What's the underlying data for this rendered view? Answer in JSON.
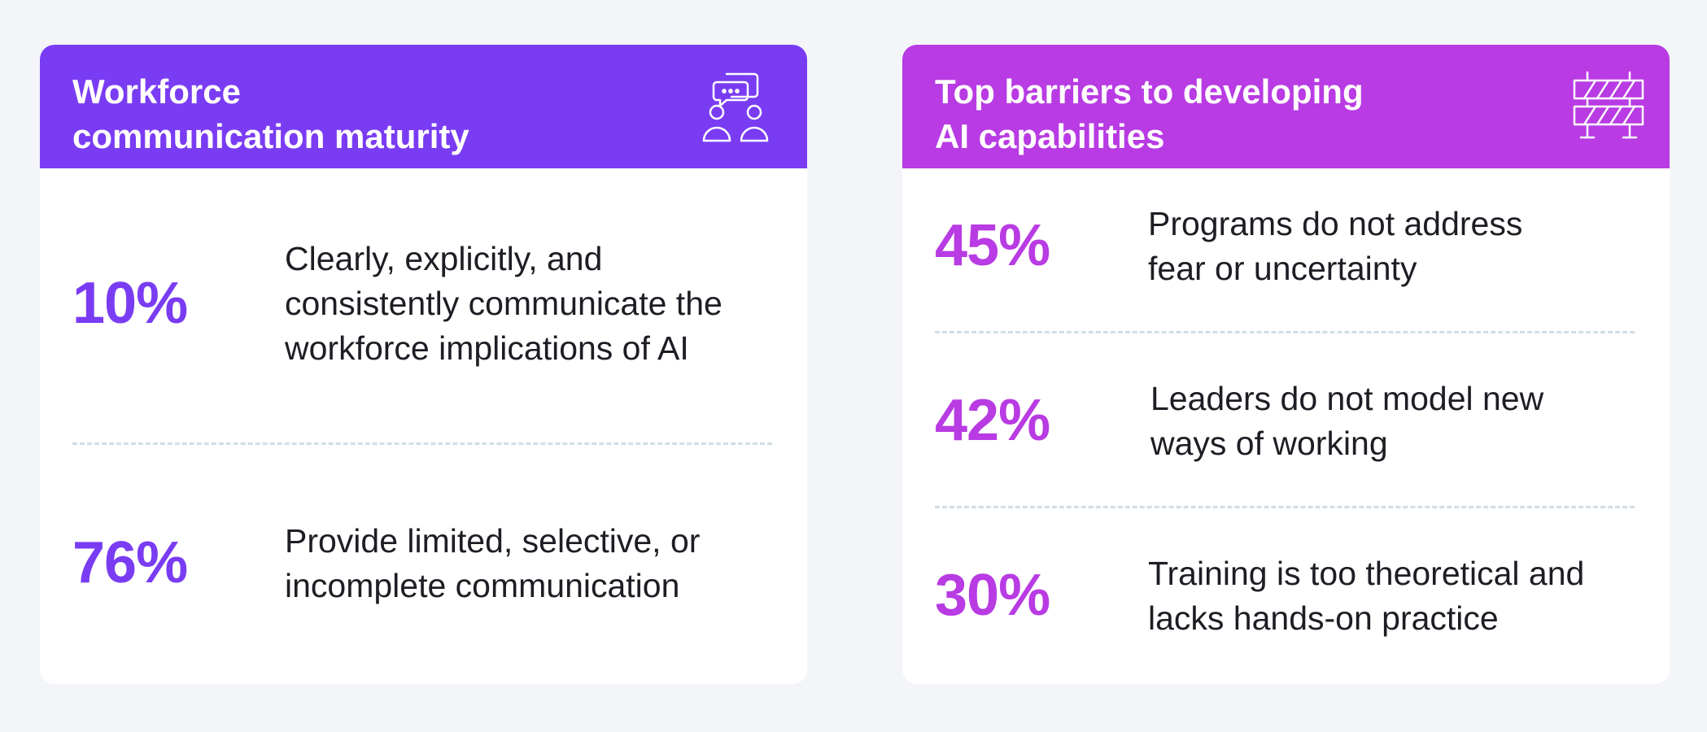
{
  "cards": [
    {
      "title": "Workforce\ncommunication maturity",
      "icon": "chat-people-icon",
      "header_color": "#7a3cf3",
      "stats": [
        {
          "percent": "10%",
          "text": "Clearly, explicitly, and\nconsistently communicate the\nworkforce implications of AI"
        },
        {
          "percent": "76%",
          "text": "Provide limited, selective, or\nincomplete communication"
        }
      ]
    },
    {
      "title": "Top barriers to developing\nAI capabilities",
      "icon": "roadblock-barrier-icon",
      "header_color": "#b83be3",
      "stats": [
        {
          "percent": "45%",
          "text": "Programs do not address\nfear or uncertainty"
        },
        {
          "percent": "42%",
          "text": "Leaders do not model new\nways of working"
        },
        {
          "percent": "30%",
          "text": "Training is too theoretical and\nlacks hands-on practice"
        }
      ]
    }
  ]
}
